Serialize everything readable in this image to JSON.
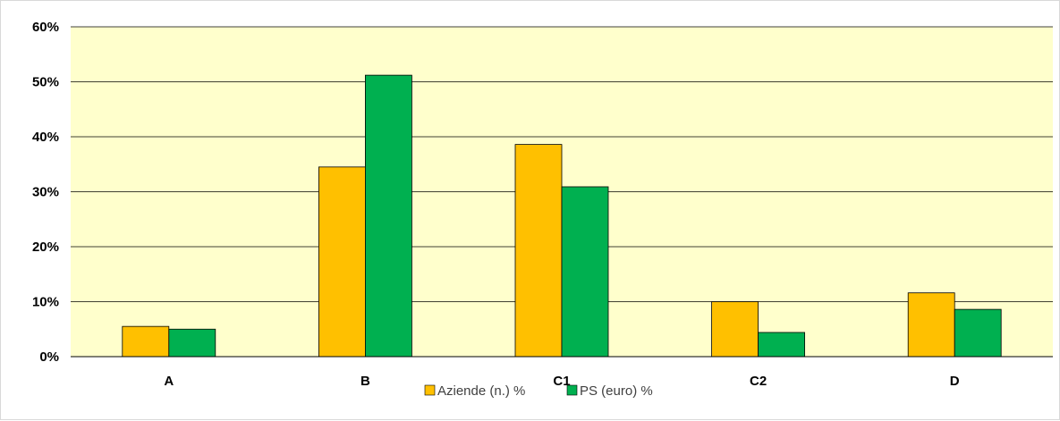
{
  "chart_data": {
    "type": "bar",
    "title": "",
    "xlabel": "",
    "ylabel": "",
    "categories": [
      "A",
      "B",
      "C1",
      "C2",
      "D"
    ],
    "series": [
      {
        "name": "Aziende (n.) %",
        "values": [
          0.055,
          0.345,
          0.386,
          0.1,
          0.116
        ],
        "color": "#FFC000"
      },
      {
        "name": "PS (euro) %",
        "values": [
          0.05,
          0.512,
          0.309,
          0.044,
          0.086
        ],
        "color": "#00B050"
      }
    ],
    "ylim": [
      0,
      0.6
    ],
    "yticks": [
      0,
      0.1,
      0.2,
      0.3,
      0.4,
      0.5,
      0.6
    ],
    "ytick_labels": [
      "0%",
      "10%",
      "20%",
      "30%",
      "40%",
      "50%",
      "60%"
    ],
    "plot_background": "#FFFFCC",
    "grid": true,
    "legend_position": "bottom"
  }
}
